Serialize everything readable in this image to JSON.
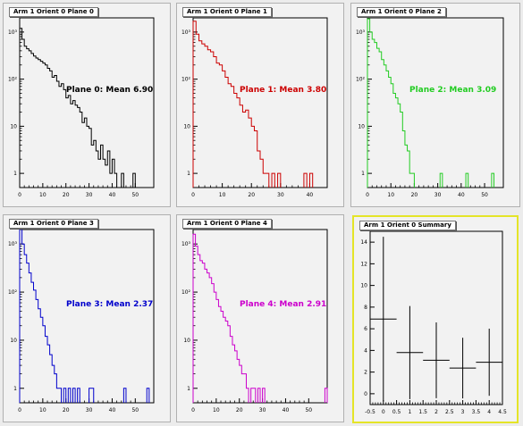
{
  "chart_data": [
    {
      "type": "histogram",
      "title": "Arm 1 Orient 0 Plane 0",
      "annotation": "Plane 0: Mean 6.90",
      "color": "#000000",
      "log_y": true,
      "xlim": [
        0,
        58
      ],
      "ylim": [
        0.5,
        2000
      ],
      "x_ticks": [
        0,
        10,
        20,
        30,
        40,
        50
      ],
      "y_ticks": [
        1,
        10,
        100,
        1000
      ],
      "y_tick_labels": [
        "1",
        "10",
        "10²",
        "10³"
      ],
      "bin_edges": [
        0,
        1,
        2,
        3,
        4,
        5,
        6,
        7,
        8,
        9,
        10,
        11,
        12,
        13,
        14,
        15,
        16,
        17,
        18,
        19,
        20,
        21,
        22,
        23,
        24,
        25,
        26,
        27,
        28,
        29,
        30,
        31,
        32,
        33,
        34,
        35,
        36,
        37,
        38,
        39,
        40,
        41,
        42,
        43,
        44,
        45,
        46,
        47,
        48,
        49,
        50,
        51,
        52,
        53,
        54,
        55,
        56,
        57,
        58
      ],
      "values": [
        1200,
        700,
        500,
        440,
        400,
        350,
        310,
        280,
        260,
        240,
        220,
        200,
        170,
        150,
        110,
        120,
        90,
        70,
        80,
        60,
        40,
        45,
        30,
        35,
        28,
        25,
        20,
        12,
        15,
        10,
        9,
        4,
        5,
        3,
        2,
        4,
        2,
        1.5,
        3,
        1,
        2,
        1,
        0,
        0,
        1,
        0,
        0,
        0,
        0,
        1,
        0,
        0,
        0,
        0,
        0,
        0,
        0,
        0
      ]
    },
    {
      "type": "histogram",
      "title": "Arm 1 Orient 0 Plane 1",
      "annotation": "Plane 1: Mean 3.80",
      "color": "#cc0000",
      "log_y": true,
      "xlim": [
        0,
        46
      ],
      "ylim": [
        0.5,
        2000
      ],
      "x_ticks": [
        0,
        10,
        20,
        30,
        40
      ],
      "y_ticks": [
        1,
        10,
        100,
        1000
      ],
      "y_tick_labels": [
        "1",
        "10",
        "10²",
        "10³"
      ],
      "bin_edges": [
        0,
        1,
        2,
        3,
        4,
        5,
        6,
        7,
        8,
        9,
        10,
        11,
        12,
        13,
        14,
        15,
        16,
        17,
        18,
        19,
        20,
        21,
        22,
        23,
        24,
        25,
        26,
        27,
        28,
        29,
        30,
        31,
        32,
        33,
        34,
        35,
        36,
        37,
        38,
        39,
        40,
        41,
        42,
        43,
        44,
        45,
        46
      ],
      "values": [
        1700,
        900,
        650,
        560,
        500,
        420,
        380,
        300,
        220,
        200,
        150,
        110,
        80,
        70,
        50,
        40,
        28,
        20,
        22,
        15,
        10,
        8,
        3,
        2,
        1,
        1,
        0,
        1,
        0,
        1,
        0,
        0,
        0,
        0,
        0,
        0,
        0,
        0,
        1,
        0,
        1,
        0,
        0,
        0,
        0,
        0
      ]
    },
    {
      "type": "histogram",
      "title": "Arm 1 Orient 0 Plane 2",
      "annotation": "Plane 2: Mean 3.09",
      "color": "#22cc22",
      "log_y": true,
      "xlim": [
        0,
        58
      ],
      "ylim": [
        0.5,
        2000
      ],
      "x_ticks": [
        0,
        10,
        20,
        30,
        40,
        50
      ],
      "y_ticks": [
        1,
        10,
        100,
        1000
      ],
      "y_tick_labels": [
        "1",
        "10",
        "10²",
        "10³"
      ],
      "bin_edges": [
        0,
        1,
        2,
        3,
        4,
        5,
        6,
        7,
        8,
        9,
        10,
        11,
        12,
        13,
        14,
        15,
        16,
        17,
        18,
        19,
        20,
        21,
        22,
        23,
        24,
        25,
        26,
        27,
        28,
        29,
        30,
        31,
        32,
        33,
        34,
        35,
        36,
        37,
        38,
        39,
        40,
        41,
        42,
        43,
        44,
        45,
        46,
        47,
        48,
        49,
        50,
        51,
        52,
        53,
        54,
        55,
        56,
        57,
        58
      ],
      "values": [
        1900,
        1000,
        700,
        600,
        450,
        380,
        260,
        200,
        150,
        110,
        80,
        50,
        40,
        30,
        20,
        8,
        4,
        3,
        1,
        1,
        0,
        0,
        0,
        0,
        0,
        0,
        0,
        0,
        0,
        0,
        0,
        1,
        0,
        0,
        0,
        0,
        0,
        0,
        0,
        0,
        0,
        0,
        1,
        0,
        0,
        0,
        0,
        0,
        0,
        0,
        0,
        0,
        0,
        1,
        0,
        0,
        0,
        0
      ]
    },
    {
      "type": "histogram",
      "title": "Arm 1 Orient 0 Plane 3",
      "annotation": "Plane 3: Mean 2.37",
      "color": "#0000cc",
      "log_y": true,
      "xlim": [
        0,
        58
      ],
      "ylim": [
        0.5,
        2000
      ],
      "x_ticks": [
        0,
        10,
        20,
        30,
        40,
        50
      ],
      "y_ticks": [
        1,
        10,
        100,
        1000
      ],
      "y_tick_labels": [
        "1",
        "10",
        "10²",
        "10³"
      ],
      "bin_edges": [
        0,
        1,
        2,
        3,
        4,
        5,
        6,
        7,
        8,
        9,
        10,
        11,
        12,
        13,
        14,
        15,
        16,
        17,
        18,
        19,
        20,
        21,
        22,
        23,
        24,
        25,
        26,
        27,
        28,
        29,
        30,
        31,
        32,
        33,
        34,
        35,
        36,
        37,
        38,
        39,
        40,
        41,
        42,
        43,
        44,
        45,
        46,
        47,
        48,
        49,
        50,
        51,
        52,
        53,
        54,
        55,
        56,
        57,
        58
      ],
      "values": [
        2500,
        1000,
        600,
        400,
        250,
        160,
        110,
        70,
        45,
        30,
        20,
        12,
        8,
        5,
        3,
        2,
        1,
        1,
        0,
        1,
        0,
        1,
        0,
        1,
        0,
        1,
        0,
        0,
        0,
        0,
        1,
        1,
        0,
        0,
        0,
        0,
        0,
        0,
        0,
        0,
        0,
        0,
        0,
        0,
        0,
        1,
        0,
        0,
        0,
        0,
        0,
        0,
        0,
        0,
        0,
        1,
        0,
        0
      ]
    },
    {
      "type": "histogram",
      "title": "Arm 1 Orient 0 Plane 4",
      "annotation": "Plane 4: Mean 2.91",
      "color": "#cc00cc",
      "log_y": true,
      "xlim": [
        0,
        58
      ],
      "ylim": [
        0.5,
        2000
      ],
      "x_ticks": [
        0,
        10,
        20,
        30,
        40,
        50
      ],
      "y_ticks": [
        1,
        10,
        100,
        1000
      ],
      "y_tick_labels": [
        "1",
        "10",
        "10²",
        "10³"
      ],
      "bin_edges": [
        0,
        1,
        2,
        3,
        4,
        5,
        6,
        7,
        8,
        9,
        10,
        11,
        12,
        13,
        14,
        15,
        16,
        17,
        18,
        19,
        20,
        21,
        22,
        23,
        24,
        25,
        26,
        27,
        28,
        29,
        30,
        31,
        32,
        33,
        34,
        35,
        36,
        37,
        38,
        39,
        40,
        41,
        42,
        43,
        44,
        45,
        46,
        47,
        48,
        49,
        50,
        51,
        52,
        53,
        54,
        55,
        56,
        57,
        58
      ],
      "values": [
        1600,
        900,
        600,
        450,
        400,
        300,
        250,
        200,
        150,
        100,
        70,
        50,
        40,
        30,
        25,
        20,
        12,
        8,
        6,
        4,
        3,
        2,
        2,
        1,
        0,
        1,
        1,
        0,
        1,
        0,
        1,
        0,
        0,
        0,
        0,
        0,
        0,
        0,
        0,
        0,
        0,
        0,
        0,
        0,
        0,
        0,
        0,
        0,
        0,
        0,
        0,
        0,
        0,
        0,
        0,
        0,
        0,
        1
      ]
    },
    {
      "type": "errorbar",
      "title": "Arm 1 Orient 0 Summary",
      "color": "#000000",
      "log_y": false,
      "xlim": [
        -0.5,
        4.5
      ],
      "ylim": [
        -1,
        15
      ],
      "x_ticks": [
        -0.5,
        0,
        0.5,
        1,
        1.5,
        2,
        2.5,
        3,
        3.5,
        4,
        4.5
      ],
      "y_ticks": [
        0,
        2,
        4,
        6,
        8,
        10,
        12,
        14
      ],
      "x": [
        0,
        1,
        2,
        3,
        4
      ],
      "y": [
        6.9,
        3.8,
        3.09,
        2.37,
        2.91
      ],
      "x_err": [
        0.5,
        0.5,
        0.5,
        0.5,
        0.5
      ],
      "y_err": [
        7.6,
        4.3,
        3.5,
        2.8,
        3.1
      ]
    }
  ]
}
